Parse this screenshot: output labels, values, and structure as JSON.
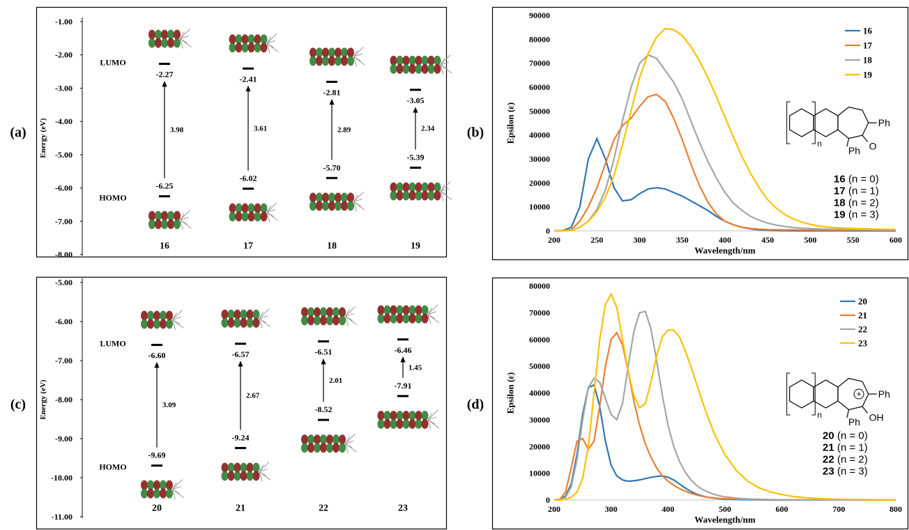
{
  "chart_data": [
    {
      "type": "energy-level",
      "panel_label": "(a)",
      "ylabel": "Energy (eV)",
      "ylim": [
        -8,
        -1
      ],
      "yticks": [
        {
          "value": -1,
          "label": "-1.00"
        },
        {
          "value": -2,
          "label": "-2.00"
        },
        {
          "value": -3,
          "label": "-3.00"
        },
        {
          "value": -4,
          "label": "-4.00"
        },
        {
          "value": -5,
          "label": "-5.00"
        },
        {
          "value": -6,
          "label": "-6.00"
        },
        {
          "value": -7,
          "label": "-7.00"
        },
        {
          "value": -8,
          "label": "-8.00"
        }
      ],
      "categories": [
        "16",
        "17",
        "18",
        "19"
      ],
      "lumo": {
        "name": "LUMO",
        "values": [
          -2.27,
          -2.41,
          -2.81,
          -3.05
        ],
        "value_labels": [
          "-2.27",
          "-2.41",
          "-2.81",
          "-3.05"
        ]
      },
      "homo": {
        "name": "HOMO",
        "values": [
          -6.25,
          -6.02,
          -5.7,
          -5.39
        ],
        "value_labels": [
          "-6.25",
          "-6.02",
          "-5.70",
          "-5.39"
        ]
      },
      "gap": {
        "color": "#ff0000",
        "values": [
          3.98,
          3.61,
          2.89,
          2.34
        ],
        "value_labels": [
          "3.98",
          "3.61",
          "2.89",
          "2.34"
        ]
      }
    },
    {
      "type": "line",
      "panel_label": "(b)",
      "xlabel": "Wavelength/nm",
      "ylabel": "Epsilon (ε)",
      "xlim": [
        200,
        600
      ],
      "xticks": [
        200,
        250,
        300,
        350,
        400,
        450,
        500,
        550,
        600
      ],
      "ylim": [
        0,
        90000
      ],
      "yticks": [
        0,
        10000,
        20000,
        30000,
        40000,
        50000,
        60000,
        70000,
        80000,
        90000
      ],
      "legend": "top-right",
      "x": [
        200,
        210,
        220,
        230,
        240,
        250,
        260,
        270,
        280,
        290,
        300,
        310,
        320,
        330,
        340,
        350,
        360,
        370,
        380,
        390,
        400,
        410,
        420,
        430,
        440,
        450,
        460,
        470,
        480,
        490,
        500,
        510,
        520,
        530,
        540,
        550,
        560,
        570,
        580,
        590,
        600
      ],
      "series": [
        {
          "name": "16",
          "color": "#2e75b6",
          "values": [
            0,
            50,
            1500,
            10000,
            30000,
            38500,
            30000,
            18000,
            12500,
            13000,
            15500,
            17500,
            18000,
            17500,
            16000,
            14500,
            12500,
            10500,
            8500,
            6000,
            4000,
            2500,
            1500,
            800,
            400,
            200,
            100,
            50,
            0,
            0,
            0,
            0,
            0,
            0,
            0,
            0,
            0,
            0,
            0,
            0,
            0
          ]
        },
        {
          "name": "17",
          "color": "#ed7d31",
          "values": [
            0,
            0,
            500,
            4000,
            10000,
            18000,
            28000,
            38000,
            44000,
            47000,
            52000,
            56000,
            57000,
            54000,
            47000,
            38000,
            28000,
            19000,
            12000,
            7000,
            4000,
            2500,
            1500,
            1000,
            700,
            500,
            450,
            400,
            400,
            350,
            350,
            300,
            300,
            300,
            300,
            300,
            300,
            300,
            300,
            300,
            300
          ]
        },
        {
          "name": "18",
          "color": "#a5a5a5",
          "values": [
            0,
            0,
            200,
            1500,
            4000,
            9000,
            17000,
            30000,
            46000,
            60000,
            70000,
            73500,
            72000,
            67000,
            62000,
            55000,
            46000,
            37000,
            29000,
            22000,
            16000,
            11500,
            8500,
            6000,
            4500,
            3200,
            2400,
            1800,
            1400,
            1100,
            900,
            800,
            700,
            650,
            600,
            550,
            500,
            450,
            450,
            400,
            400
          ]
        },
        {
          "name": "19",
          "color": "#ffc000",
          "values": [
            0,
            0,
            200,
            1500,
            4000,
            8000,
            14000,
            23000,
            36000,
            50000,
            64000,
            74000,
            81000,
            84500,
            84000,
            81500,
            77000,
            71000,
            64000,
            56000,
            47500,
            39000,
            31000,
            24000,
            18000,
            13000,
            9500,
            6800,
            5000,
            3600,
            2700,
            2000,
            1600,
            1300,
            1100,
            1000,
            900,
            800,
            700,
            650,
            600
          ]
        }
      ],
      "structure": {
        "top": "Ph",
        "right": "O",
        "bottom": "Ph",
        "repeat": "n"
      },
      "compounds": [
        {
          "name": "16",
          "text": "(n = 0)"
        },
        {
          "name": "17",
          "text": "(n = 1)"
        },
        {
          "name": "18",
          "text": "(n = 2)"
        },
        {
          "name": "19",
          "text": "(n = 3)"
        }
      ]
    },
    {
      "type": "energy-level",
      "panel_label": "(c)",
      "ylabel": "Energy (eV)",
      "ylim": [
        -11,
        -5
      ],
      "yticks": [
        {
          "value": -5,
          "label": "-5.00"
        },
        {
          "value": -6,
          "label": "-6.00"
        },
        {
          "value": -7,
          "label": "-7.00"
        },
        {
          "value": -8,
          "label": "-8.00"
        },
        {
          "value": -9,
          "label": "-9.00"
        },
        {
          "value": -10,
          "label": "-10.00"
        },
        {
          "value": -11,
          "label": "-11.00"
        }
      ],
      "categories": [
        "20",
        "21",
        "22",
        "23"
      ],
      "lumo": {
        "name": "LUMO",
        "values": [
          -6.6,
          -6.57,
          -6.51,
          -6.46
        ],
        "value_labels": [
          "-6.60",
          "-6.57",
          "-6.51",
          "-6.46"
        ]
      },
      "homo": {
        "name": "HOMO",
        "values": [
          -9.69,
          -9.24,
          -8.52,
          -7.91
        ],
        "value_labels": [
          "-9.69",
          "-9.24",
          "-8.52",
          "-7.91"
        ]
      },
      "gap": {
        "color": "#ff0000",
        "values": [
          3.09,
          2.67,
          2.01,
          1.45
        ],
        "value_labels": [
          "3.09",
          "2.67",
          "2.01",
          "1.45"
        ]
      }
    },
    {
      "type": "line",
      "panel_label": "(d)",
      "xlabel": "Wavelength/nm",
      "ylabel": "Epsilon (ε)",
      "xlim": [
        200,
        800
      ],
      "xticks": [
        200,
        300,
        400,
        500,
        600,
        700,
        800
      ],
      "ylim": [
        0,
        80000
      ],
      "yticks": [
        0,
        10000,
        20000,
        30000,
        40000,
        50000,
        60000,
        70000,
        80000
      ],
      "legend": "top-right",
      "x": [
        200,
        210,
        220,
        230,
        240,
        250,
        260,
        270,
        280,
        290,
        300,
        310,
        320,
        330,
        340,
        350,
        360,
        370,
        380,
        390,
        400,
        410,
        420,
        430,
        440,
        450,
        460,
        470,
        480,
        490,
        500,
        520,
        540,
        560,
        580,
        600,
        620,
        640,
        660,
        680,
        700,
        720,
        740,
        760,
        780,
        800
      ],
      "series": [
        {
          "name": "20",
          "color": "#2e75b6",
          "values": [
            0,
            200,
            1500,
            6000,
            17000,
            32000,
            42000,
            43000,
            35000,
            22000,
            13000,
            9000,
            7500,
            7000,
            7200,
            7500,
            8000,
            8500,
            8800,
            9000,
            8500,
            7500,
            6000,
            4500,
            3200,
            2200,
            1500,
            1000,
            700,
            500,
            300,
            150,
            100,
            50,
            0,
            0,
            0,
            0,
            0,
            0,
            0,
            0,
            0,
            0,
            0,
            0
          ]
        },
        {
          "name": "21",
          "color": "#ed7d31",
          "values": [
            0,
            300,
            3000,
            12000,
            22000,
            23000,
            19000,
            22000,
            35000,
            50000,
            60000,
            62500,
            58000,
            48000,
            37000,
            28000,
            21000,
            16000,
            12000,
            9000,
            7000,
            5500,
            4300,
            3300,
            2500,
            1900,
            1400,
            1000,
            800,
            600,
            500,
            300,
            200,
            150,
            100,
            80,
            60,
            50,
            40,
            30,
            20,
            20,
            10,
            10,
            0,
            0
          ]
        },
        {
          "name": "22",
          "color": "#a5a5a5",
          "values": [
            0,
            100,
            1000,
            5000,
            15000,
            30000,
            42000,
            45500,
            44000,
            38000,
            32000,
            30000,
            36000,
            50000,
            63000,
            70000,
            70500,
            64000,
            52000,
            39000,
            28000,
            20000,
            14500,
            10500,
            7500,
            5500,
            4000,
            3000,
            2200,
            1600,
            1200,
            700,
            400,
            250,
            150,
            100,
            80,
            60,
            50,
            40,
            30,
            20,
            20,
            10,
            10,
            0
          ]
        },
        {
          "name": "23",
          "color": "#ffc000",
          "values": [
            0,
            0,
            200,
            1000,
            3000,
            8000,
            20000,
            40000,
            60000,
            73000,
            77000,
            72000,
            60000,
            48000,
            39000,
            34500,
            36000,
            44000,
            54000,
            61000,
            63500,
            63500,
            61000,
            56000,
            50000,
            43500,
            37000,
            31000,
            25500,
            21000,
            17000,
            11000,
            7000,
            4500,
            3000,
            2000,
            1300,
            900,
            600,
            400,
            300,
            200,
            150,
            100,
            80,
            50
          ]
        }
      ],
      "structure": {
        "top": "Ph",
        "right": "OH",
        "bottom": "Ph",
        "repeat": "n",
        "charge": "+"
      },
      "compounds": [
        {
          "name": "20",
          "text": "(n = 0)"
        },
        {
          "name": "21",
          "text": "(n = 1)"
        },
        {
          "name": "22",
          "text": "(n = 2)"
        },
        {
          "name": "23",
          "text": "(n = 3)"
        }
      ]
    }
  ]
}
